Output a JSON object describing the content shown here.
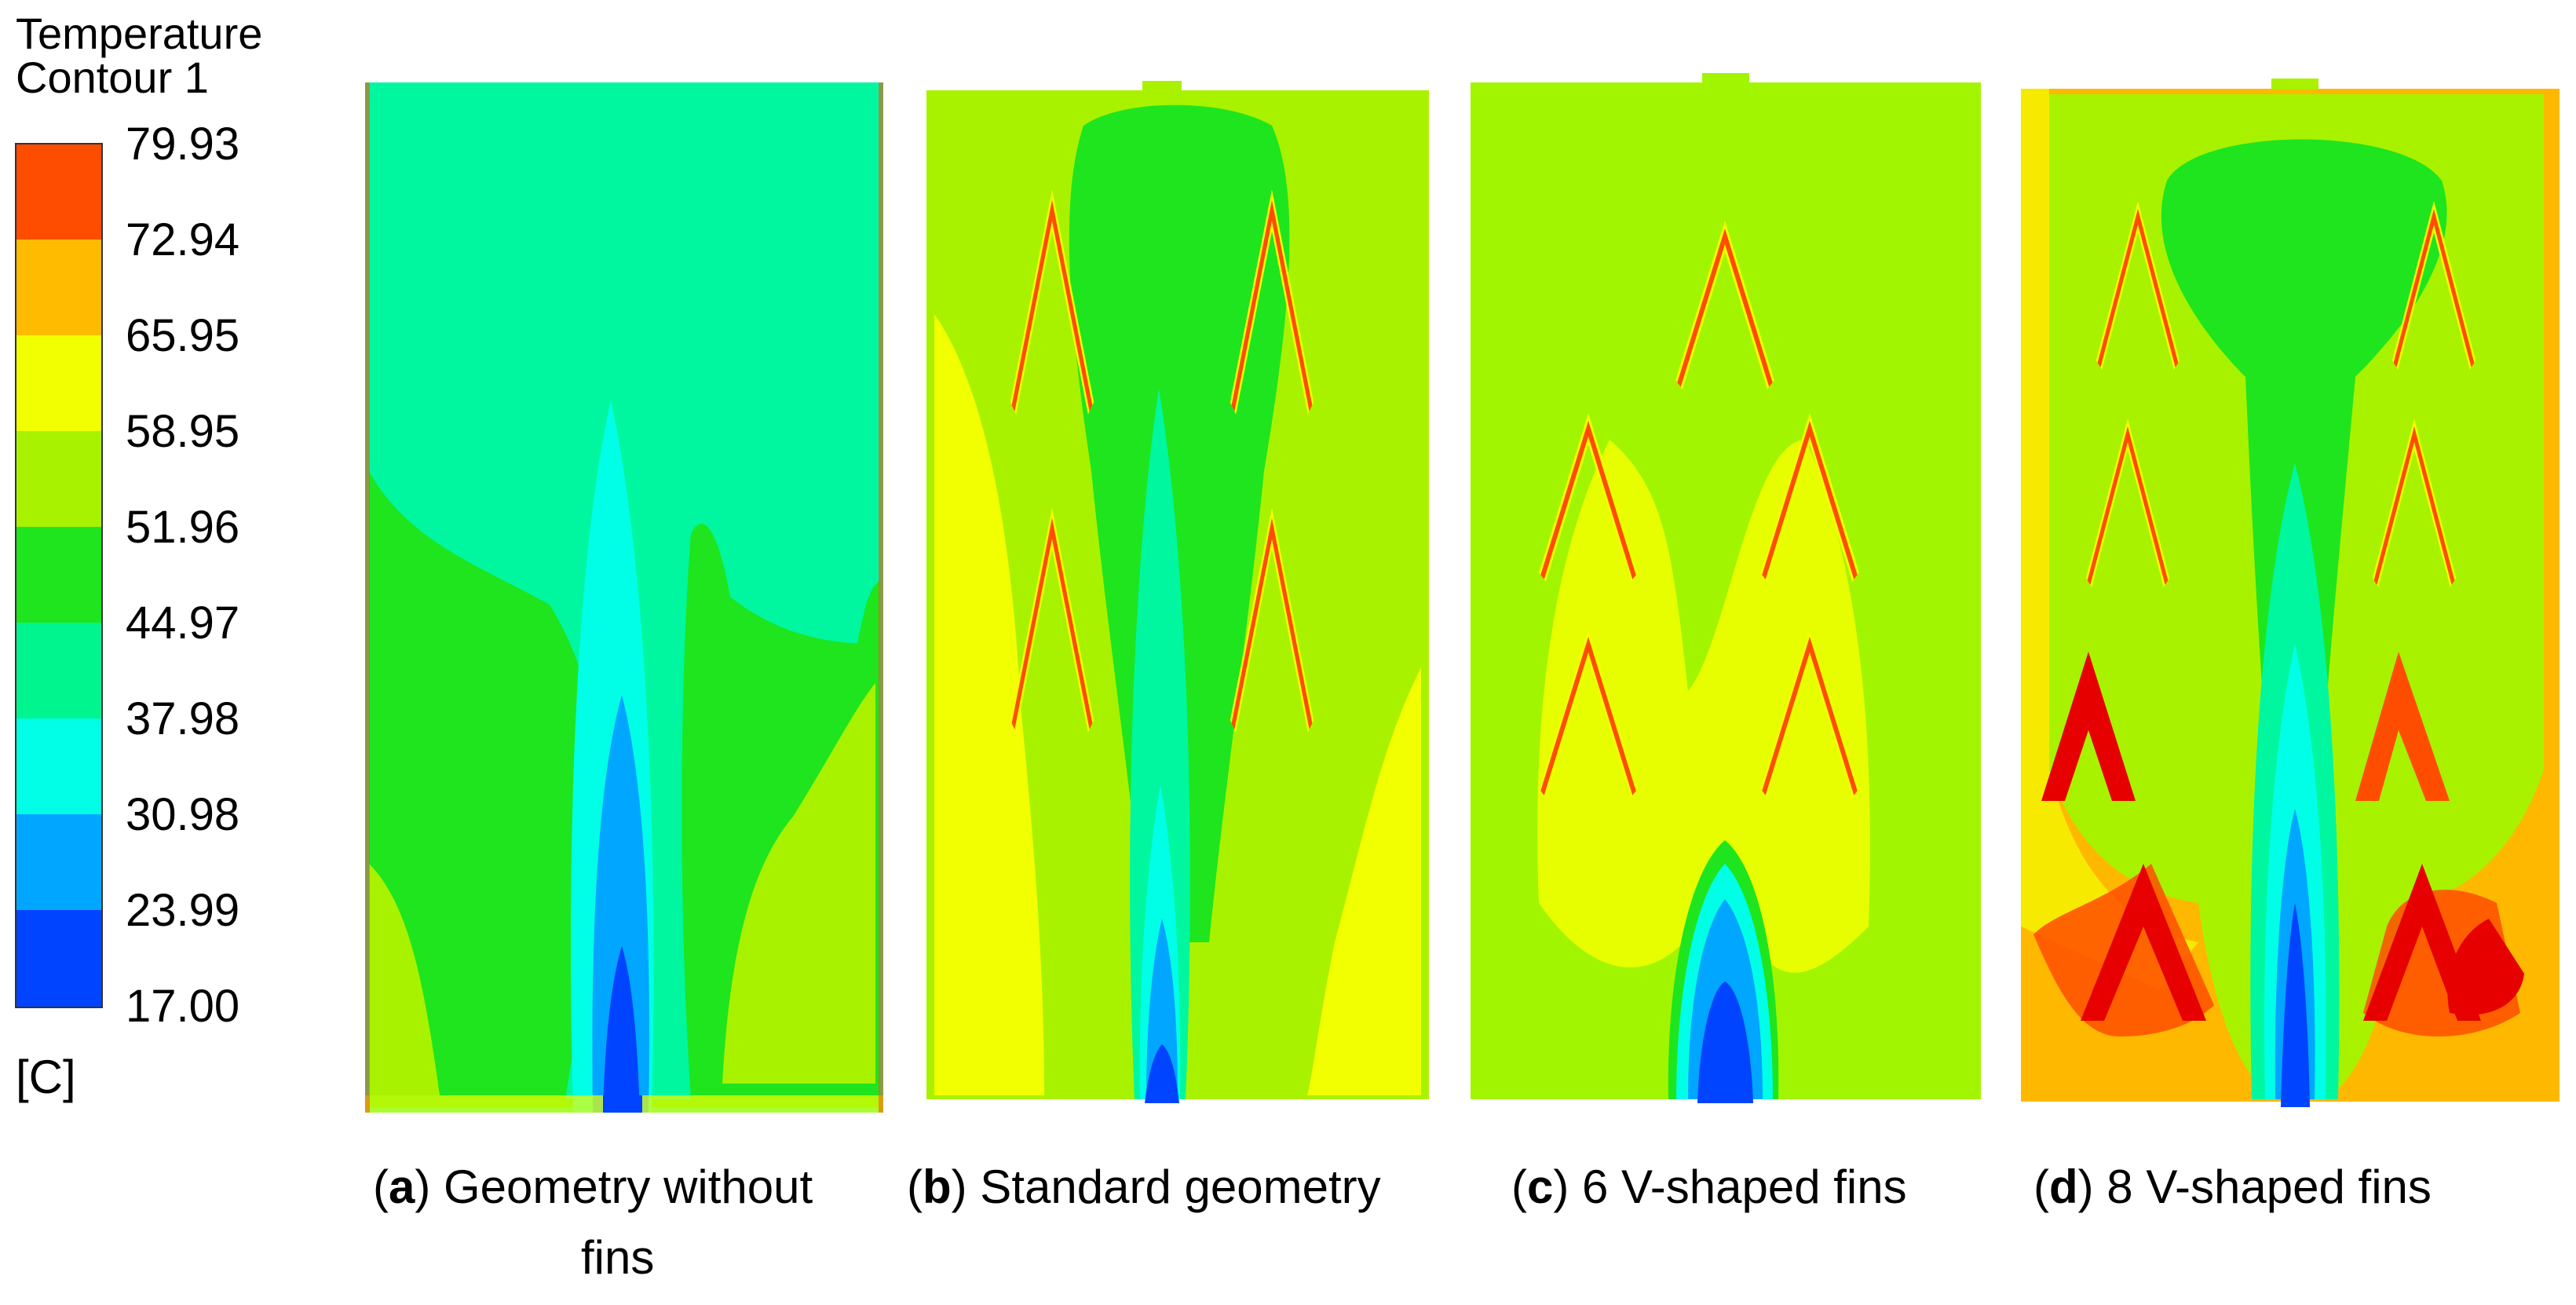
{
  "legend": {
    "title_line1": "Temperature",
    "title_line2": "Contour 1",
    "unit": "[C]",
    "levels": [
      "79.93",
      "72.94",
      "65.95",
      "58.95",
      "51.96",
      "44.97",
      "37.98",
      "30.98",
      "23.99",
      "17.00"
    ],
    "band_colors": [
      "#ff4d00",
      "#ffbb00",
      "#f2ff00",
      "#a8f200",
      "#1ee51e",
      "#00f58e",
      "#00ffe6",
      "#00a6ff",
      "#0044ff"
    ]
  },
  "palette": {
    "ambient_no_fins": "#00f7a0",
    "ambient_std": "#a8f200",
    "ambient_c": "#a2f500",
    "ambient_d": "#ffb800",
    "cold_core": "#0044ff",
    "cool": "#00a6ff",
    "cyan": "#00ffe6",
    "green": "#1ee51e",
    "yellow": "#f2ff00",
    "hot": "#ff4d00",
    "hottest": "#e60000"
  },
  "panels": [
    {
      "letter": "a",
      "caption_line1": " Geometry without",
      "caption_line2": "fins"
    },
    {
      "letter": "b",
      "caption_line1": "  Standard geometry",
      "caption_line2": ""
    },
    {
      "letter": "c",
      "caption_line1": " 6 V-shaped fins",
      "caption_line2": ""
    },
    {
      "letter": "d",
      "caption_line1": " 8 V-shaped fins",
      "caption_line2": ""
    }
  ]
}
